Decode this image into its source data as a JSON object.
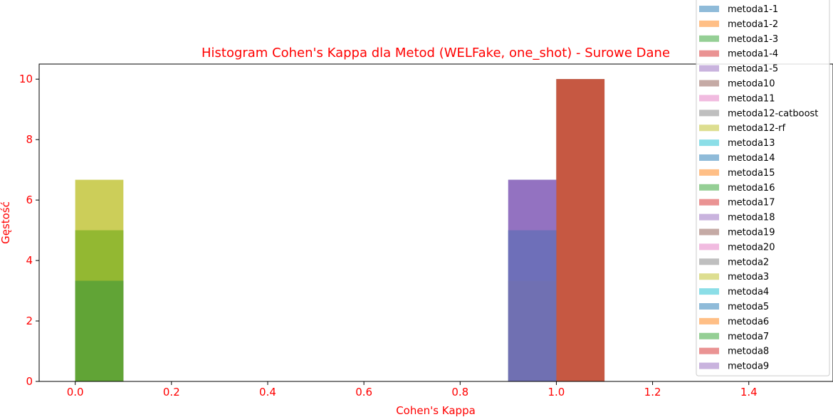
{
  "chart_data": {
    "type": "bar",
    "title": "Histogram Cohen's Kappa dla Metod (WELFake, one_shot) - Surowe Dane",
    "xlabel": "Cohen's Kappa",
    "ylabel": "Gęstość",
    "xlim": [
      -0.075,
      1.575
    ],
    "ylim": [
      0,
      10.5
    ],
    "xticks": [
      0.0,
      0.2,
      0.4,
      0.6,
      0.8,
      1.0,
      1.2,
      1.4
    ],
    "xtick_labels": [
      "0.0",
      "0.2",
      "0.4",
      "0.6",
      "0.8",
      "1.0",
      "1.2",
      "1.4"
    ],
    "yticks": [
      0,
      2,
      4,
      6,
      8,
      10
    ],
    "ytick_labels": [
      "0",
      "2",
      "4",
      "6",
      "8",
      "10"
    ],
    "bar_alpha": 0.5,
    "label_color": "#ff0000",
    "legend_placement": "top-right",
    "series": [
      {
        "name": "metoda1-1",
        "color": "#1f77b4",
        "bins": [
          {
            "x0": 0.0,
            "x1": 0.1,
            "density": 3.33
          },
          {
            "x0": 0.9,
            "x1": 1.0,
            "density": 6.67
          }
        ]
      },
      {
        "name": "metoda1-2",
        "color": "#ff7f0e",
        "bins": [
          {
            "x0": 1.0,
            "x1": 1.1,
            "density": 10
          }
        ]
      },
      {
        "name": "metoda1-3",
        "color": "#2ca02c",
        "bins": [
          {
            "x0": 0.0,
            "x1": 0.1,
            "density": 5
          },
          {
            "x0": 0.9,
            "x1": 1.0,
            "density": 5
          }
        ]
      },
      {
        "name": "metoda1-4",
        "color": "#d62728",
        "bins": [
          {
            "x0": 1.0,
            "x1": 1.1,
            "density": 10
          }
        ]
      },
      {
        "name": "metoda1-5",
        "color": "#9467bd",
        "bins": [
          {
            "x0": 0.9,
            "x1": 1.0,
            "density": 6.67
          }
        ]
      },
      {
        "name": "metoda10",
        "color": "#8c564b",
        "bins": [
          {
            "x0": 1.0,
            "x1": 1.1,
            "density": 10
          }
        ]
      },
      {
        "name": "metoda11",
        "color": "#e377c2",
        "bins": [
          {
            "x0": 1.0,
            "x1": 1.1,
            "density": 10
          }
        ]
      },
      {
        "name": "metoda12-catboost",
        "color": "#7f7f7f",
        "bins": [
          {
            "x0": 0.0,
            "x1": 0.1,
            "density": 3.33
          },
          {
            "x0": 0.9,
            "x1": 1.0,
            "density": 3.33
          }
        ]
      },
      {
        "name": "metoda12-rf",
        "color": "#bcbd22",
        "bins": [
          {
            "x0": 0.0,
            "x1": 0.1,
            "density": 6.67
          }
        ]
      },
      {
        "name": "metoda13",
        "color": "#17becf",
        "bins": [
          {
            "x0": 1.0,
            "x1": 1.1,
            "density": 10
          }
        ]
      },
      {
        "name": "metoda14",
        "color": "#1f77b4",
        "bins": [
          {
            "x0": 0.9,
            "x1": 1.0,
            "density": 5
          }
        ]
      },
      {
        "name": "metoda15",
        "color": "#ff7f0e",
        "bins": [
          {
            "x0": 1.0,
            "x1": 1.1,
            "density": 10
          }
        ]
      },
      {
        "name": "metoda16",
        "color": "#2ca02c",
        "bins": [
          {
            "x0": 0.0,
            "x1": 0.1,
            "density": 5
          }
        ]
      },
      {
        "name": "metoda17",
        "color": "#d62728",
        "bins": [
          {
            "x0": 1.0,
            "x1": 1.1,
            "density": 10
          }
        ]
      },
      {
        "name": "metoda18",
        "color": "#9467bd",
        "bins": [
          {
            "x0": 0.9,
            "x1": 1.0,
            "density": 6.67
          }
        ]
      },
      {
        "name": "metoda19",
        "color": "#8c564b",
        "bins": [
          {
            "x0": 1.0,
            "x1": 1.1,
            "density": 10
          }
        ]
      },
      {
        "name": "metoda20",
        "color": "#e377c2",
        "bins": [
          {
            "x0": 1.0,
            "x1": 1.1,
            "density": 10
          }
        ]
      },
      {
        "name": "metoda2",
        "color": "#7f7f7f",
        "bins": [
          {
            "x0": 0.0,
            "x1": 0.1,
            "density": 3.33
          },
          {
            "x0": 0.9,
            "x1": 1.0,
            "density": 3.33
          }
        ]
      },
      {
        "name": "metoda3",
        "color": "#bcbd22",
        "bins": [
          {
            "x0": 0.0,
            "x1": 0.1,
            "density": 6.67
          }
        ]
      },
      {
        "name": "metoda4",
        "color": "#17becf",
        "bins": [
          {
            "x0": 1.0,
            "x1": 1.1,
            "density": 10
          }
        ]
      },
      {
        "name": "metoda5",
        "color": "#1f77b4",
        "bins": [
          {
            "x0": 0.9,
            "x1": 1.0,
            "density": 5
          }
        ]
      },
      {
        "name": "metoda6",
        "color": "#ff7f0e",
        "bins": [
          {
            "x0": 1.0,
            "x1": 1.1,
            "density": 10
          }
        ]
      },
      {
        "name": "metoda7",
        "color": "#2ca02c",
        "bins": [
          {
            "x0": 0.0,
            "x1": 0.1,
            "density": 3.33
          }
        ]
      },
      {
        "name": "metoda8",
        "color": "#d62728",
        "bins": [
          {
            "x0": 1.0,
            "x1": 1.1,
            "density": 10
          }
        ]
      },
      {
        "name": "metoda9",
        "color": "#9467bd",
        "bins": [
          {
            "x0": 0.9,
            "x1": 1.0,
            "density": 6.67
          }
        ]
      }
    ]
  }
}
